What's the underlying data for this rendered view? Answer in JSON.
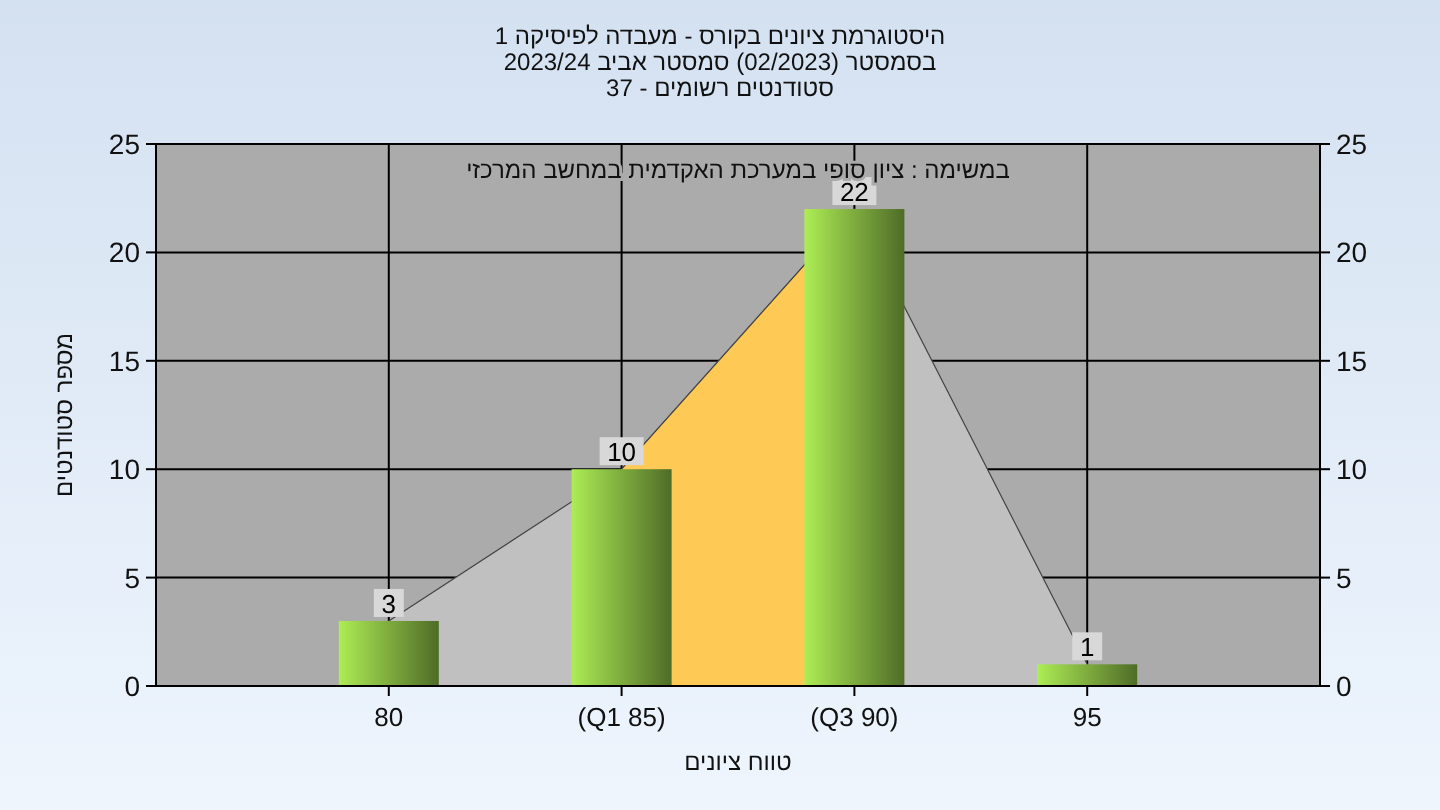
{
  "chart_data": {
    "type": "bar",
    "title": "היסטוגרמת ציונים בקורס - מעבדה לפיסיקה 1",
    "subtitle": "בסמסטר  (02/2023)  סמסטר אביב 2023/24\nסטודנטים רשומים - 37",
    "xlabel": "טווח ציונים",
    "ylabel": "מספר סטודנטים",
    "annotations": [
      "במשימה : ציון סופי במערכת האקדמית במחשב המרכזי"
    ],
    "categories": [
      "80",
      "(Q1 85)",
      "(Q3 90)",
      "95"
    ],
    "series": [
      {
        "type": "area",
        "color": "#c0c0c0",
        "values": [
          3,
          10,
          22,
          1
        ]
      },
      {
        "type": "area",
        "color": "#ffc956",
        "values": [
          null,
          10,
          22,
          null
        ]
      },
      {
        "color": "#8cbf45",
        "values": [
          3,
          10,
          22,
          1
        ],
        "value_labels": [
          "3",
          "10",
          "22",
          "1"
        ]
      }
    ],
    "ylim": [
      0,
      25
    ],
    "yticks": [
      0,
      5,
      10,
      15,
      20,
      25
    ],
    "y2lim": [
      0,
      25
    ],
    "y2ticks": [
      0,
      5,
      10,
      15,
      20,
      25
    ],
    "grid": true
  }
}
